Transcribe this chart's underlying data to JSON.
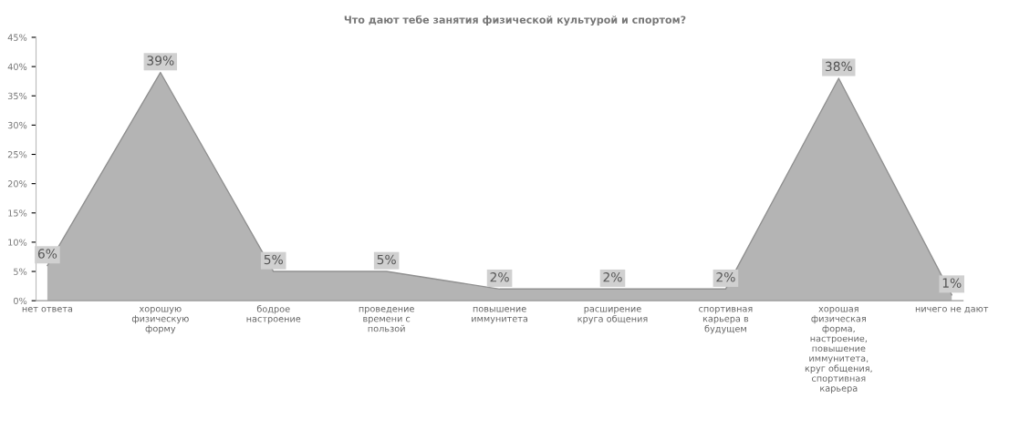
{
  "chart_data": {
    "type": "area",
    "title": "Что дают тебе занятия физической культурой и спортом?",
    "categories": [
      "нет ответа",
      "хорошую\nфизическую\nформу",
      "бодрое\nнастроение",
      "проведение\nвремени с\nпользой",
      "повышение\nиммунитета",
      "расширение\nкруга общения",
      "спортивная\nкарьера в\nбудущем",
      "хорошая\nфизическая\nформа,\nнастроение,\nповышение\nиммунитета,\nкруг общения,\nспортивная\nкарьера",
      "ничего не дают"
    ],
    "series": [
      {
        "color": "#b4b4b4",
        "values": [
          6,
          39,
          5,
          5,
          2,
          2,
          2,
          38,
          1
        ],
        "value_labels": [
          "6%",
          "39%",
          "5%",
          "5%",
          "2%",
          "2%",
          "2%",
          "38%",
          "1%"
        ]
      }
    ],
    "ylim": [
      0,
      45
    ],
    "yticks": [
      {
        "value": 0,
        "label": "0%"
      },
      {
        "value": 5,
        "label": "5%"
      },
      {
        "value": 10,
        "label": "10%"
      },
      {
        "value": 15,
        "label": "15%"
      },
      {
        "value": 20,
        "label": "20%"
      },
      {
        "value": 25,
        "label": "25%"
      },
      {
        "value": 30,
        "label": "30%"
      },
      {
        "value": 35,
        "label": "35%"
      },
      {
        "value": 40,
        "label": "40%"
      },
      {
        "value": 45,
        "label": "45%"
      }
    ],
    "grid": false
  }
}
